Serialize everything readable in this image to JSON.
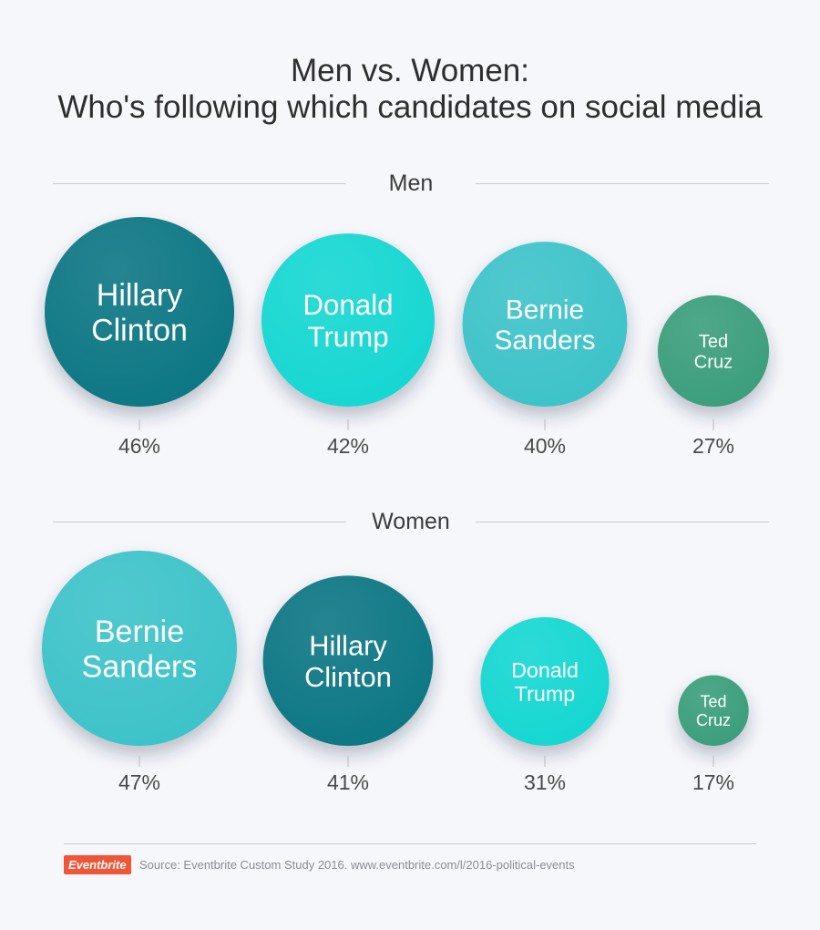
{
  "title": {
    "line1": "Men vs. Women:",
    "line2": "Who's following which candidates on social media"
  },
  "colors": {
    "Hillary Clinton": "#0b7784",
    "Donald Trump": "#14d7d2",
    "Bernie Sanders": "#3dc3c9",
    "Ted Cruz": "#3a9e7c",
    "background": "#f6f7fb",
    "brand": "#f05537"
  },
  "chart_data": [
    {
      "type": "bubble",
      "title": "Men",
      "categories": [
        "Hillary Clinton",
        "Donald Trump",
        "Bernie Sanders",
        "Ted Cruz"
      ],
      "name_lines": [
        [
          "Hillary",
          "Clinton"
        ],
        [
          "Donald",
          "Trump"
        ],
        [
          "Bernie",
          "Sanders"
        ],
        [
          "Ted",
          "Cruz"
        ]
      ],
      "values": [
        46,
        42,
        40,
        27
      ],
      "value_labels": [
        "46%",
        "42%",
        "40%",
        "27%"
      ]
    },
    {
      "type": "bubble",
      "title": "Women",
      "categories": [
        "Bernie Sanders",
        "Hillary Clinton",
        "Donald Trump",
        "Ted Cruz"
      ],
      "name_lines": [
        [
          "Bernie",
          "Sanders"
        ],
        [
          "Hillary",
          "Clinton"
        ],
        [
          "Donald",
          "Trump"
        ],
        [
          "Ted",
          "Cruz"
        ]
      ],
      "values": [
        47,
        41,
        31,
        17
      ],
      "value_labels": [
        "47%",
        "41%",
        "31%",
        "17%"
      ]
    }
  ],
  "footer": {
    "logo": "Eventbrite",
    "source": "Source: Eventbrite Custom Study 2016. www.eventbrite.com/l/2016-political-events"
  }
}
